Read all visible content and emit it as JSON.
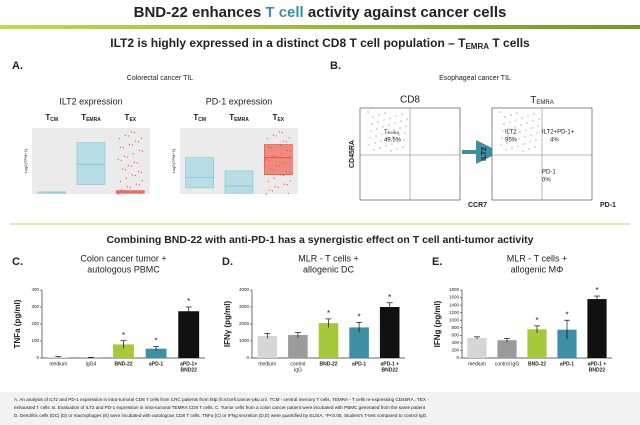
{
  "title": [
    "BND-22 enhances ",
    "T cell",
    " activity against cancer cells"
  ],
  "subtitle": {
    "text": "ILT2 is highly expressed in a distinct CD8 T cell population – T",
    "sub": "EMRA",
    "tail": " T cells"
  },
  "panel_a": {
    "label": "A.",
    "caption": "Colorectal cancer TIL",
    "y_label": "Log2(TPM+1)",
    "plots": [
      {
        "title": "ILT2 expression",
        "groups": [
          {
            "t": "T",
            "sub": "CM"
          },
          {
            "t": "T",
            "sub": "EMRA"
          },
          {
            "t": "T",
            "sub": "EX"
          }
        ]
      },
      {
        "title": "PD-1 expression",
        "groups": [
          {
            "t": "T",
            "sub": "CM"
          },
          {
            "t": "T",
            "sub": "EMRA"
          },
          {
            "t": "T",
            "sub": "EX"
          }
        ]
      }
    ]
  },
  "panel_b": {
    "label": "B.",
    "caption": "Esophageal cancer TIL",
    "left": {
      "title": "CD8",
      "gate": {
        "t": "T",
        "sub": "EMRA",
        "value": "49.5%"
      },
      "x_axis": "CCR7",
      "y_axis": "CD45RA"
    },
    "right": {
      "title": {
        "t": "T",
        "sub": "EMRA"
      },
      "quadrants": [
        {
          "name": "ILT2",
          "value": "95%"
        },
        {
          "name": "ILT2+PD-1+",
          "value": "4%"
        },
        {
          "name": "PD-1",
          "value": "0%"
        }
      ],
      "x_axis": "PD-1",
      "y_axis": "ILT2"
    }
  },
  "heading2": "Combining BND-22 with anti-PD-1 has a synergistic effect on T cell anti-tumor activity",
  "charts": [
    {
      "type": "bar",
      "label": "C.",
      "title": [
        "Colon cancer tumor +",
        "autologous PBMC"
      ],
      "y_label": "TNFa (pg/ml)",
      "categories": [
        [
          "medium"
        ],
        [
          "IgG4"
        ],
        [
          "BND-22"
        ],
        [
          "aPD-1"
        ],
        [
          "aPD-1+",
          "BND22"
        ]
      ],
      "values": [
        5,
        2,
        80,
        55,
        275
      ],
      "errors": [
        3,
        2,
        22,
        12,
        25
      ],
      "colors": [
        "#d6d6d6",
        "#9a9a9a",
        "#a8c83c",
        "#3d8fa6",
        "#111111"
      ],
      "stars": [
        null,
        null,
        "*",
        "*",
        "*"
      ],
      "ylim": [
        0,
        400
      ],
      "yticks": [
        0,
        100,
        200,
        300,
        400
      ]
    },
    {
      "type": "bar",
      "label": "D.",
      "title": [
        "MLR - T cells +",
        "allogenic DC"
      ],
      "y_label": "IFNγ (pg/ml)",
      "categories": [
        [
          "medium"
        ],
        [
          "control",
          "IgG"
        ],
        [
          "BND-22"
        ],
        [
          "aPD-1"
        ],
        [
          "aPD-1 +",
          "BND22"
        ]
      ],
      "values": [
        1300,
        1350,
        2050,
        1800,
        3000
      ],
      "errors": [
        150,
        150,
        250,
        300,
        250
      ],
      "colors": [
        "#d6d6d6",
        "#9a9a9a",
        "#a8c83c",
        "#3d8fa6",
        "#111111"
      ],
      "stars": [
        null,
        null,
        "*",
        "*",
        "*"
      ],
      "ylim": [
        0,
        4000
      ],
      "yticks": [
        0,
        1000,
        2000,
        3000,
        4000
      ]
    },
    {
      "type": "bar",
      "label": "E.",
      "title": [
        "MLR - T cells +",
        "allogenic MΦ"
      ],
      "y_label": "IFNg (pg/ml)",
      "categories": [
        [
          "medium"
        ],
        [
          "control IgG"
        ],
        [
          "BND-22"
        ],
        [
          "aPD-1"
        ],
        [
          "aPD-1 +",
          "BND22"
        ]
      ],
      "values": [
        530,
        470,
        760,
        750,
        1560
      ],
      "errors": [
        30,
        50,
        90,
        250,
        80
      ],
      "colors": [
        "#d6d6d6",
        "#9a9a9a",
        "#a8c83c",
        "#3d8fa6",
        "#111111"
      ],
      "stars": [
        null,
        null,
        "*",
        "*",
        "*"
      ],
      "ylim": [
        0,
        1800
      ],
      "yticks": [
        0,
        200,
        400,
        600,
        800,
        1000,
        1200,
        1400,
        1600,
        1800
      ]
    }
  ],
  "footnote": [
    "A. An analysis of ILT2 and PD-1 expression in intra-tumoral CD8 T cells from CRC patients from http://crctcell.cancer-pku.cn/. TCM - central memory T cells, TEMRA - T cells re-expressing CD45RA , TEX -",
    "exhausted T cells. B. Evaluation of ILT2 and PD-1 expression in intra-tumoral TEMRA CD8 T cells. C. Tumor cells from a colon cancer patient were incubated with PBMC generated from the same patient",
    "D. Dendritic cells (DC) (D) or macrophages (E) were incubated with autologous CD8 T cells. TNFa (C) or IFNg secretion (D,E) were quantified by ELISA. *P<0.05, Student's T-test compared to control IgG."
  ]
}
